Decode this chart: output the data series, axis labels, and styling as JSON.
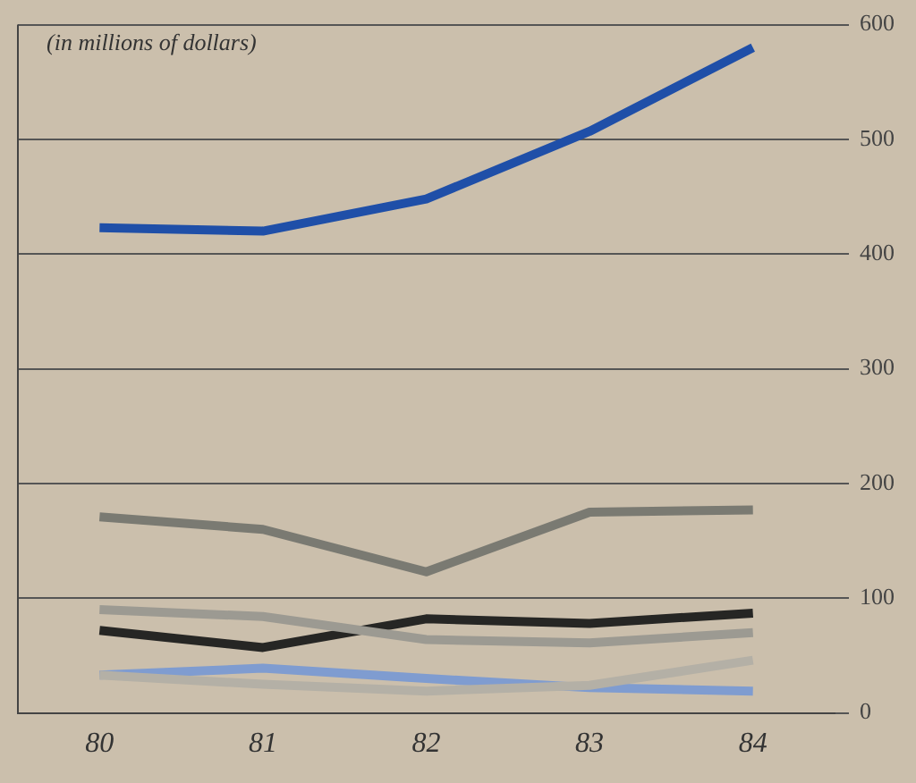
{
  "chart_data": {
    "type": "line",
    "title": "(in millions of dollars)",
    "categories": [
      "80",
      "81",
      "82",
      "83",
      "84"
    ],
    "series": [
      {
        "color": "#1f4fa8",
        "values": [
          423,
          420,
          448,
          507,
          580
        ]
      },
      {
        "color": "#7a7a72",
        "values": [
          171,
          160,
          123,
          175,
          177
        ]
      },
      {
        "color": "#9c9a92",
        "values": [
          90,
          84,
          64,
          61,
          70
        ]
      },
      {
        "color": "#262624",
        "values": [
          72,
          57,
          82,
          78,
          87
        ]
      },
      {
        "color": "#b4b0a6",
        "values": [
          33,
          25,
          19,
          24,
          46
        ]
      },
      {
        "color": "#7f9cd0",
        "values": [
          33,
          39,
          30,
          22,
          19
        ]
      }
    ],
    "ylim": [
      0,
      600
    ],
    "yticks": [
      0,
      100,
      200,
      300,
      400,
      500,
      600
    ],
    "grid": "y",
    "legend": false,
    "marker": "none",
    "line_style": "solid"
  }
}
